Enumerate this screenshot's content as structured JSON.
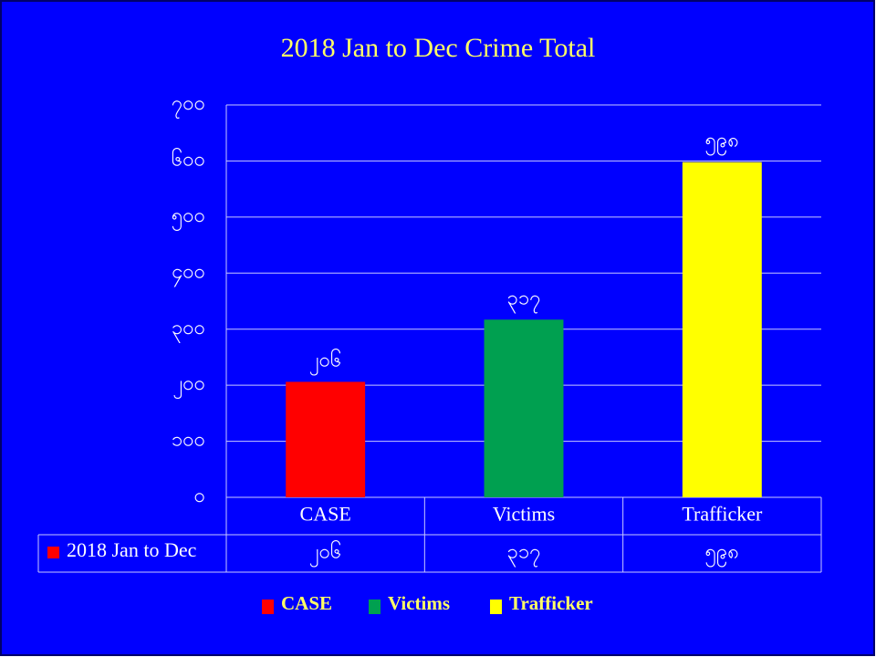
{
  "chart_data": {
    "type": "bar",
    "title": "2018  Jan to Dec Crime Total",
    "categories": [
      "CASE",
      "Victims",
      "Trafficker"
    ],
    "series": [
      {
        "name": "2018 Jan to Dec",
        "values": [
          206,
          317,
          598
        ],
        "value_labels": [
          "၂၀၆",
          "၃၁၇",
          "၅၉၈"
        ],
        "colors": [
          "#ff0000",
          "#00a050",
          "#ffff00"
        ]
      }
    ],
    "ylim": [
      0,
      700
    ],
    "yticks": [
      {
        "value": 0,
        "label": "၀"
      },
      {
        "value": 100,
        "label": "၁၀၀"
      },
      {
        "value": 200,
        "label": "၂၀၀"
      },
      {
        "value": 300,
        "label": "၃၀၀"
      },
      {
        "value": 400,
        "label": "၄၀၀"
      },
      {
        "value": 500,
        "label": "၅၀၀"
      },
      {
        "value": 600,
        "label": "၆၀၀"
      },
      {
        "value": 700,
        "label": "၇၀၀"
      }
    ],
    "grid": true,
    "legend": "bottom"
  }
}
